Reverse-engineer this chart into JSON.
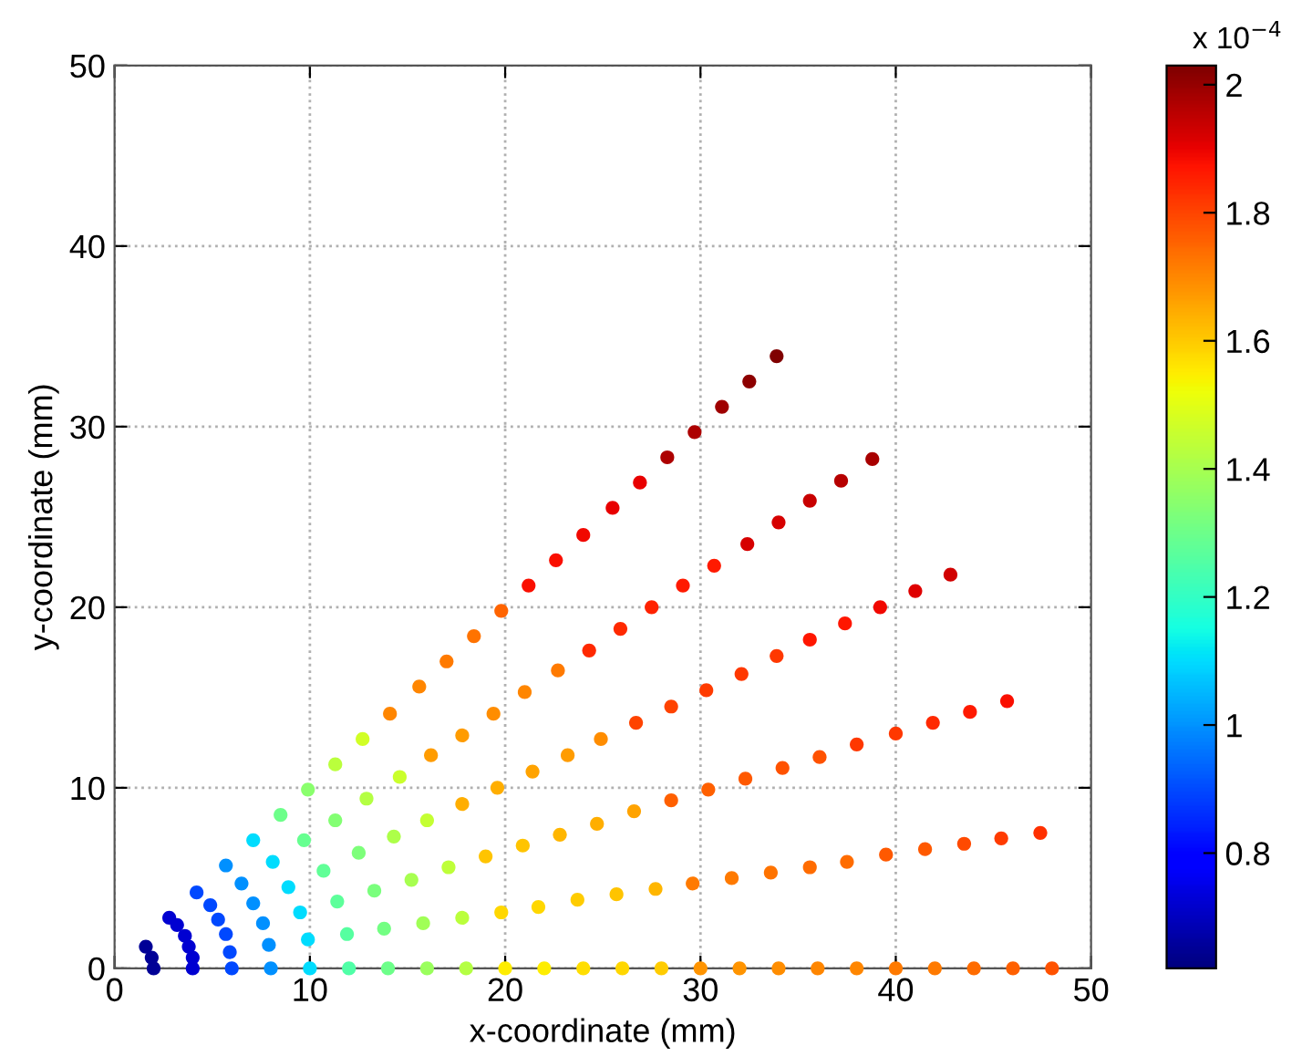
{
  "chart_data": {
    "type": "scatter",
    "xlabel": "x-coordinate (mm)",
    "ylabel": "y-coordinate (mm)",
    "xlim": [
      0,
      50
    ],
    "ylim": [
      0,
      50
    ],
    "xticks": [
      0,
      10,
      20,
      30,
      40,
      50
    ],
    "yticks": [
      0,
      10,
      20,
      30,
      40,
      50
    ],
    "grid": true,
    "marker": "circle",
    "clim": [
      0.62,
      2.03
    ],
    "cticks": [
      0.8,
      1,
      1.2,
      1.4,
      1.6,
      1.8,
      2
    ],
    "annotations": [
      "x 10$^{−4}$"
    ],
    "series": [
      {
        "x": [
          2.0,
          1.9,
          1.6,
          4.0,
          4.0,
          3.8,
          3.6,
          3.2,
          2.8,
          6.0,
          5.9,
          5.7,
          5.3,
          4.9,
          4.2,
          8.0,
          7.9,
          7.6,
          7.1,
          6.5,
          5.7,
          10.0,
          9.9,
          9.5,
          8.9,
          8.1,
          7.1,
          12.0,
          11.9,
          11.4,
          10.7,
          9.7,
          8.5,
          14.0,
          13.8,
          13.3,
          12.5,
          11.3,
          9.9,
          16.0,
          15.8,
          15.2,
          14.3,
          12.9,
          11.3,
          18.0,
          17.8,
          17.1,
          16.0,
          14.6,
          12.7,
          20.0,
          19.8,
          19.0,
          17.8,
          16.2,
          14.1,
          22.0,
          21.7,
          20.9,
          19.6,
          17.8,
          15.6,
          24.0,
          23.7,
          22.8,
          21.4,
          19.4,
          17.0,
          26.0,
          25.7,
          24.7,
          23.2,
          21.0,
          18.4,
          28.0,
          27.7,
          26.6,
          24.9,
          22.7,
          19.8,
          30.0,
          29.6,
          28.5,
          26.7,
          24.3,
          21.2,
          32.0,
          31.6,
          30.4,
          28.5,
          25.9,
          22.6,
          34.0,
          33.6,
          32.3,
          30.3,
          27.5,
          24.0,
          36.0,
          35.6,
          34.2,
          32.1,
          29.1,
          25.5,
          38.0,
          37.5,
          36.1,
          33.9,
          30.7,
          26.9,
          40.0,
          39.5,
          38.0,
          35.6,
          32.4,
          28.3,
          42.0,
          41.5,
          40.0,
          37.4,
          34.0,
          29.7,
          44.0,
          43.5,
          41.9,
          39.2,
          35.6,
          31.1,
          46.0,
          45.4,
          43.8,
          41.0,
          37.2,
          32.5,
          48.0,
          47.4,
          45.7,
          42.8,
          38.8,
          33.9
        ],
        "values": [
          0,
          0.6,
          1.2,
          0,
          0.6,
          1.2,
          1.8,
          2.4,
          2.8,
          0,
          0.9,
          1.9,
          2.7,
          3.5,
          4.2,
          0,
          1.3,
          2.5,
          3.6,
          4.7,
          5.7,
          0,
          1.6,
          3.1,
          4.5,
          5.9,
          7.1,
          0,
          1.9,
          3.7,
          5.4,
          7.1,
          8.5,
          0,
          2.2,
          4.3,
          6.4,
          8.2,
          9.9,
          0,
          2.5,
          4.9,
          7.3,
          9.4,
          11.3,
          0,
          2.8,
          5.6,
          8.2,
          10.6,
          12.7,
          0,
          3.1,
          6.2,
          9.1,
          11.8,
          14.1,
          0,
          3.4,
          6.8,
          10.0,
          12.9,
          15.6,
          0,
          3.8,
          7.4,
          10.9,
          14.1,
          17.0,
          0,
          4.1,
          8.0,
          11.8,
          15.3,
          18.4,
          0,
          4.4,
          8.7,
          12.7,
          16.5,
          19.8,
          0,
          4.7,
          9.3,
          13.6,
          17.6,
          21.2,
          0,
          5.0,
          9.9,
          14.5,
          18.8,
          22.6,
          0,
          5.3,
          10.5,
          15.4,
          20.0,
          24.0,
          0,
          5.6,
          11.1,
          16.3,
          21.2,
          25.5,
          0,
          5.9,
          11.7,
          17.3,
          22.3,
          26.9,
          0,
          6.3,
          12.4,
          18.2,
          23.5,
          28.3,
          0,
          6.6,
          13.0,
          19.1,
          24.7,
          29.7,
          0,
          6.9,
          13.6,
          20.0,
          25.9,
          31.1,
          0,
          7.2,
          14.2,
          20.9,
          27.0,
          32.5,
          0,
          7.5,
          14.8,
          21.8,
          28.2,
          33.9
        ],
        "cvalues": [
          0.65,
          0.65,
          0.65,
          0.72,
          0.72,
          0.72,
          0.72,
          0.72,
          0.72,
          0.9,
          0.9,
          0.9,
          0.9,
          0.9,
          0.9,
          1.0,
          1.0,
          1.0,
          1.0,
          1.0,
          1.0,
          1.1,
          1.1,
          1.1,
          1.1,
          1.1,
          1.1,
          1.25,
          1.26,
          1.27,
          1.28,
          1.29,
          1.3,
          1.3,
          1.31,
          1.32,
          1.33,
          1.34,
          1.35,
          1.38,
          1.39,
          1.4,
          1.41,
          1.42,
          1.43,
          1.42,
          1.43,
          1.44,
          1.45,
          1.46,
          1.47,
          1.55,
          1.58,
          1.61,
          1.64,
          1.67,
          1.7,
          1.55,
          1.58,
          1.61,
          1.64,
          1.67,
          1.7,
          1.57,
          1.6,
          1.63,
          1.66,
          1.69,
          1.72,
          1.58,
          1.61,
          1.64,
          1.67,
          1.7,
          1.73,
          1.6,
          1.63,
          1.66,
          1.69,
          1.72,
          1.75,
          1.68,
          1.72,
          1.76,
          1.8,
          1.84,
          1.88,
          1.68,
          1.72,
          1.76,
          1.8,
          1.84,
          1.88,
          1.69,
          1.73,
          1.77,
          1.81,
          1.85,
          1.89,
          1.7,
          1.74,
          1.78,
          1.82,
          1.86,
          1.9,
          1.7,
          1.74,
          1.78,
          1.82,
          1.86,
          1.9,
          1.72,
          1.77,
          1.82,
          1.87,
          1.92,
          1.97,
          1.72,
          1.77,
          1.82,
          1.87,
          1.92,
          1.97,
          1.74,
          1.79,
          1.84,
          1.89,
          1.94,
          1.99,
          1.76,
          1.81,
          1.86,
          1.91,
          1.96,
          2.01,
          1.78,
          1.83,
          1.88,
          1.93,
          1.98,
          2.03
        ]
      }
    ]
  }
}
